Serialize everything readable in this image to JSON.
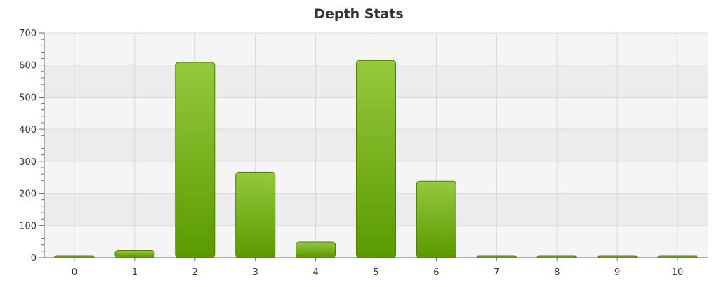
{
  "chart_data": {
    "type": "bar",
    "title": "Depth Stats",
    "xlabel": "",
    "ylabel": "",
    "categories": [
      "0",
      "1",
      "2",
      "3",
      "4",
      "5",
      "6",
      "7",
      "8",
      "9",
      "10"
    ],
    "values": [
      2,
      23,
      608,
      266,
      48,
      614,
      238,
      2,
      2,
      2,
      2
    ],
    "ylim": [
      0,
      700
    ],
    "yticks": [
      "0",
      "100",
      "200",
      "300",
      "400",
      "500",
      "600",
      "700"
    ],
    "grid": true,
    "legend": "none",
    "colors": {
      "bar_top": "#95c93d",
      "bar_bottom": "#5a9a00",
      "bar_stroke": "#4d8000",
      "band_dark": "#ececec",
      "band_light": "#f5f5f5",
      "grid": "#d8d8d8",
      "axis": "#666666"
    }
  }
}
